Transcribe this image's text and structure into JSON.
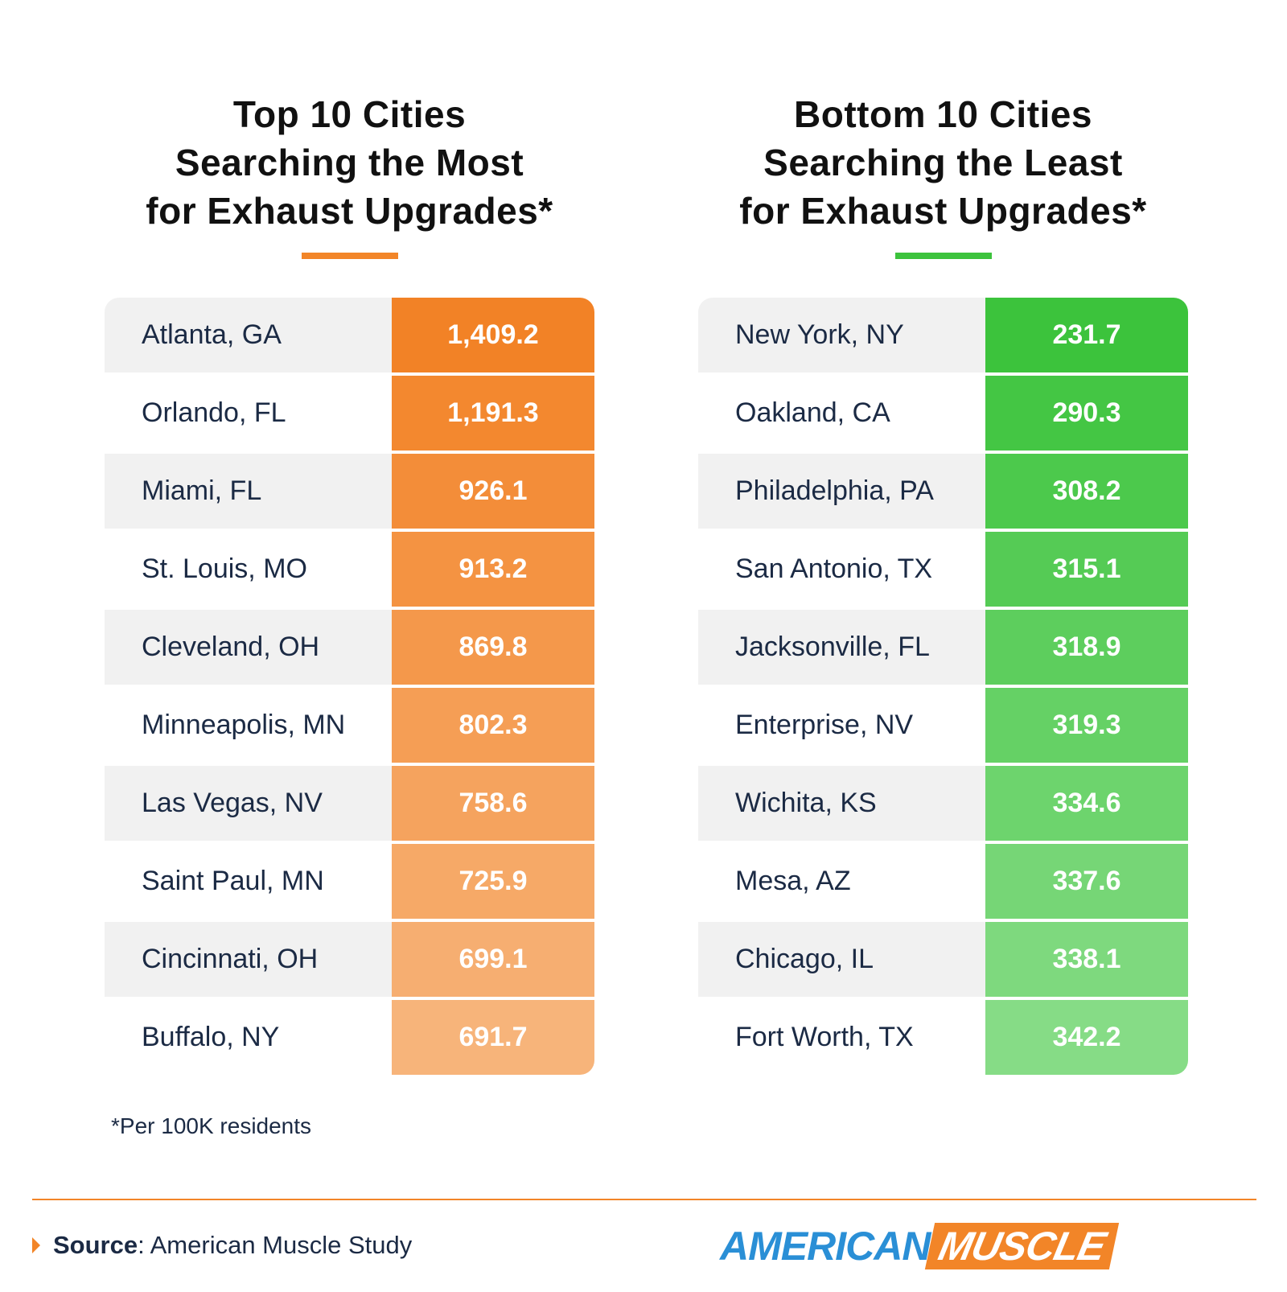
{
  "tables": [
    {
      "title": [
        "Top 10 Cities",
        "Searching the Most",
        "for Exhaust Upgrades*"
      ],
      "rows": [
        [
          "Atlanta, GA",
          "1,409.2"
        ],
        [
          "Orlando, FL",
          "1,191.3"
        ],
        [
          "Miami, FL",
          "926.1"
        ],
        [
          "St. Louis, MO",
          "913.2"
        ],
        [
          "Cleveland, OH",
          "869.8"
        ],
        [
          "Minneapolis, MN",
          "802.3"
        ],
        [
          "Las Vegas, NV",
          "758.6"
        ],
        [
          "Saint Paul, MN",
          "725.9"
        ],
        [
          "Cincinnati, OH",
          "699.1"
        ],
        [
          "Buffalo, NY",
          "691.7"
        ]
      ]
    },
    {
      "title": [
        "Bottom 10 Cities",
        "Searching the Least",
        "for Exhaust Upgrades*"
      ],
      "rows": [
        [
          "New York, NY",
          "231.7"
        ],
        [
          "Oakland, CA",
          "290.3"
        ],
        [
          "Philadelphia, PA",
          "308.2"
        ],
        [
          "San Antonio, TX",
          "315.1"
        ],
        [
          "Jacksonville, FL",
          "318.9"
        ],
        [
          "Enterprise, NV",
          "319.3"
        ],
        [
          "Wichita, KS",
          "334.6"
        ],
        [
          "Mesa, AZ",
          "337.6"
        ],
        [
          "Chicago, IL",
          "338.1"
        ],
        [
          "Fort Worth, TX",
          "342.2"
        ]
      ]
    }
  ],
  "footnote": "*Per 100K residents",
  "source": {
    "label": "Source",
    "text": ": American Muscle Study"
  },
  "logo": [
    "AMERICAN",
    "MUSCLE"
  ]
}
